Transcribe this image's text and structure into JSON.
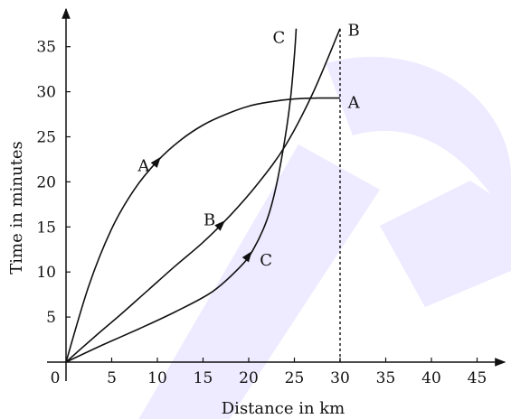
{
  "chart_data": {
    "type": "line",
    "xlabel": "Distance in km",
    "ylabel": "Time in minutes",
    "origin_label": "0",
    "xlim": [
      0,
      47
    ],
    "ylim": [
      0,
      37
    ],
    "x_ticks": [
      5,
      10,
      15,
      20,
      25,
      30,
      35,
      40,
      45
    ],
    "y_ticks": [
      5,
      10,
      15,
      20,
      25,
      30,
      35
    ],
    "reference_line": {
      "x": 30,
      "y_from": 0,
      "y_to": 37,
      "style": "dotted"
    },
    "series": [
      {
        "name": "A",
        "x": [
          0,
          2.5,
          5,
          7.5,
          10,
          12.5,
          15,
          17.5,
          20,
          22.5,
          25,
          27.5,
          30
        ],
        "y": [
          0,
          8.5,
          14.8,
          19.2,
          22.3,
          24.6,
          26.3,
          27.5,
          28.4,
          28.9,
          29.2,
          29.3,
          29.3
        ],
        "arrow_at_x": 10,
        "labels": [
          {
            "text": "A",
            "x": 8.5,
            "y": 21.8
          },
          {
            "text": "A",
            "x": 31.5,
            "y": 28.8
          }
        ]
      },
      {
        "name": "B",
        "x": [
          0,
          3,
          6,
          9,
          12,
          15,
          18,
          21,
          24,
          27,
          30
        ],
        "y": [
          0,
          2.7,
          5.3,
          8.0,
          10.7,
          13.3,
          16.3,
          19.8,
          24.0,
          29.8,
          37.0
        ],
        "arrow_at_x": 17,
        "labels": [
          {
            "text": "B",
            "x": 15.7,
            "y": 15.8
          },
          {
            "text": "B",
            "x": 31.5,
            "y": 36.8
          }
        ]
      },
      {
        "name": "C",
        "x": [
          0,
          4,
          8,
          12,
          16,
          19,
          20.5,
          22,
          23,
          24,
          24.6,
          25.0,
          25.2
        ],
        "y": [
          0,
          1.9,
          3.7,
          5.6,
          7.8,
          10.5,
          12.5,
          15.8,
          19.5,
          25.0,
          29.5,
          34.0,
          37.0
        ],
        "arrow_at_x": 20,
        "labels": [
          {
            "text": "C",
            "x": 21.9,
            "y": 11.3
          },
          {
            "text": "C",
            "x": 23.3,
            "y": 36.0
          }
        ]
      }
    ],
    "grid": false,
    "legend": "none"
  },
  "colors": {
    "curve": "#111111",
    "axis": "#111111",
    "watermark": "#eeeaff"
  }
}
